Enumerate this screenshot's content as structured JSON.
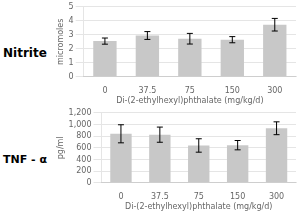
{
  "chart_data": [
    {
      "type": "bar",
      "title": "Nitrite",
      "xlabel": "Di-(2-ethylhexyl)phthalate (mg/kg/d)",
      "ylabel": "micromoles",
      "categories": [
        "0",
        "37.5",
        "75",
        "150",
        "300"
      ],
      "values": [
        2.55,
        2.95,
        2.72,
        2.65,
        3.72
      ],
      "errors": [
        0.22,
        0.28,
        0.38,
        0.22,
        0.45
      ],
      "color": "#C8C8C8",
      "ylim": [
        0,
        5
      ],
      "yticks": [
        0,
        1,
        2,
        3,
        4,
        5
      ],
      "grid": true
    },
    {
      "type": "bar",
      "title": "TNF - α",
      "xlabel": "Di-(2-ethylhexyl)phthalate (mg/kg/d)",
      "ylabel": "pg/ml",
      "categories": [
        "0",
        "37.5",
        "75",
        "150",
        "300"
      ],
      "values": [
        840,
        825,
        640,
        645,
        935
      ],
      "errors": [
        155,
        130,
        115,
        80,
        110
      ],
      "color": "#C8C8C8",
      "ylim": [
        0,
        1200
      ],
      "yticks": [
        0,
        200,
        400,
        600,
        800,
        1000,
        1200
      ],
      "grid": true
    }
  ]
}
